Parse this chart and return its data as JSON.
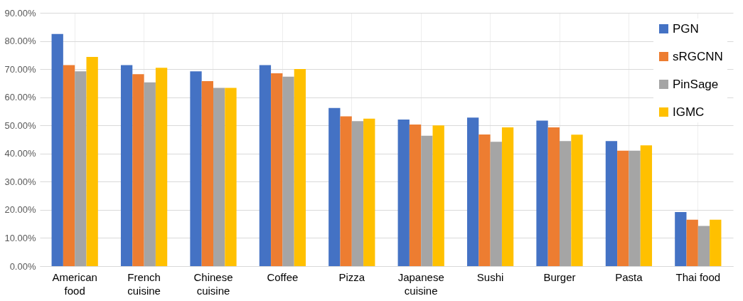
{
  "chart_data": {
    "type": "bar",
    "categories": [
      "American food",
      "French cuisine",
      "Chinese cuisine",
      "Coffee",
      "Pizza",
      "Japanese cuisine",
      "Sushi",
      "Burger",
      "Pasta",
      "Thai food"
    ],
    "series": [
      {
        "name": "PGN",
        "color": "#4472c4",
        "values": [
          82.5,
          71.4,
          69.2,
          71.4,
          56.2,
          52.1,
          52.8,
          51.7,
          44.4,
          19.2
        ]
      },
      {
        "name": "sRGCNN",
        "color": "#ed7d31",
        "values": [
          71.4,
          68.2,
          65.7,
          68.5,
          53.2,
          50.3,
          46.8,
          49.3,
          41.0,
          16.5
        ]
      },
      {
        "name": "PinSage",
        "color": "#a5a5a5",
        "values": [
          69.2,
          65.3,
          63.3,
          67.3,
          51.5,
          46.3,
          44.2,
          44.4,
          41.0,
          14.3
        ]
      },
      {
        "name": "IGMC",
        "color": "#ffc000",
        "values": [
          74.3,
          70.5,
          63.3,
          70.0,
          52.4,
          50.0,
          49.3,
          46.7,
          42.9,
          16.5
        ]
      }
    ],
    "ylim": [
      0,
      90
    ],
    "yticks": [
      {
        "value": 0,
        "label": "0.00%"
      },
      {
        "value": 10,
        "label": "10.00%"
      },
      {
        "value": 20,
        "label": "20.00%"
      },
      {
        "value": 30,
        "label": "30.00%"
      },
      {
        "value": 40,
        "label": "40.00%"
      },
      {
        "value": 50,
        "label": "50.00%"
      },
      {
        "value": 60,
        "label": "60.00%"
      },
      {
        "value": 70,
        "label": "70.00%"
      },
      {
        "value": 80,
        "label": "80.00%"
      },
      {
        "value": 90,
        "label": "90.00%"
      }
    ],
    "grid": true,
    "legend": "top right"
  }
}
